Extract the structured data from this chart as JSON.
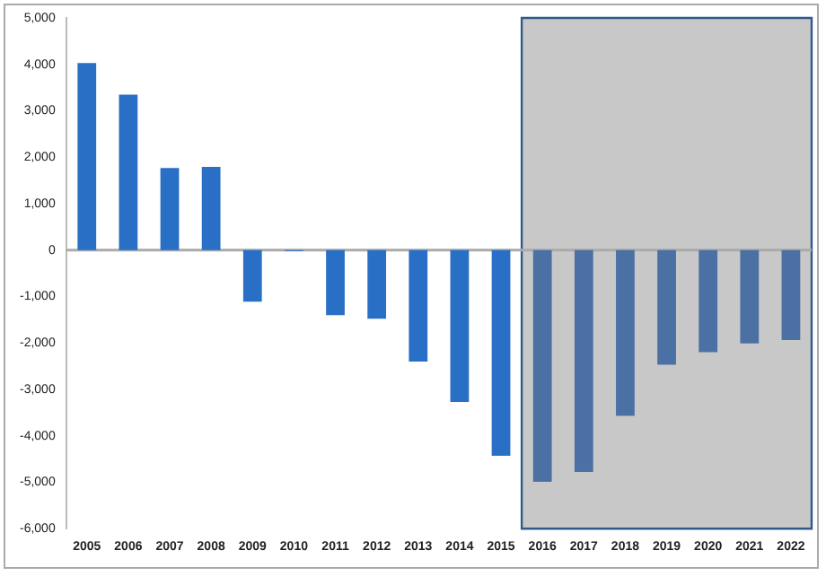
{
  "chart_data": {
    "type": "bar",
    "categories": [
      "2005",
      "2006",
      "2007",
      "2008",
      "2009",
      "2010",
      "2011",
      "2012",
      "2013",
      "2014",
      "2015",
      "2016",
      "2017",
      "2018",
      "2019",
      "2020",
      "2021",
      "2022"
    ],
    "values": [
      4030,
      3350,
      1770,
      1790,
      -1110,
      -20,
      -1400,
      -1480,
      -2400,
      -3270,
      -4430,
      -4990,
      -4780,
      -3570,
      -2470,
      -2200,
      -2010,
      -1940
    ],
    "colors": [
      "#2a6fc6",
      "#2a6fc6",
      "#2a6fc6",
      "#2a6fc6",
      "#2a6fc6",
      "#2a6fc6",
      "#2a6fc6",
      "#2a6fc6",
      "#2a6fc6",
      "#2a6fc6",
      "#2a6fc6",
      "#4a70a4",
      "#4a70a4",
      "#4a70a4",
      "#4a70a4",
      "#4a70a4",
      "#4a70a4",
      "#4a70a4"
    ],
    "ylim": [
      -6000,
      5000
    ],
    "yticks": [
      {
        "value": -6000,
        "label": "-6,000"
      },
      {
        "value": -5000,
        "label": "-5,000"
      },
      {
        "value": -4000,
        "label": "-4,000"
      },
      {
        "value": -3000,
        "label": "-3,000"
      },
      {
        "value": -2000,
        "label": "-2,000"
      },
      {
        "value": -1000,
        "label": "-1,000"
      },
      {
        "value": 0,
        "label": "0"
      },
      {
        "value": 1000,
        "label": "1,000"
      },
      {
        "value": 2000,
        "label": "2,000"
      },
      {
        "value": 3000,
        "label": "3,000"
      },
      {
        "value": 4000,
        "label": "4,000"
      },
      {
        "value": 5000,
        "label": "5,000"
      }
    ],
    "bands": [
      {
        "axis": "x",
        "from": "2016",
        "to": "2022",
        "color": "#c8c8c8"
      }
    ],
    "ref_lines": [
      {
        "axis": "y",
        "value": 0,
        "color": "#aaaaaa"
      }
    ],
    "grid": false,
    "legend": false
  }
}
